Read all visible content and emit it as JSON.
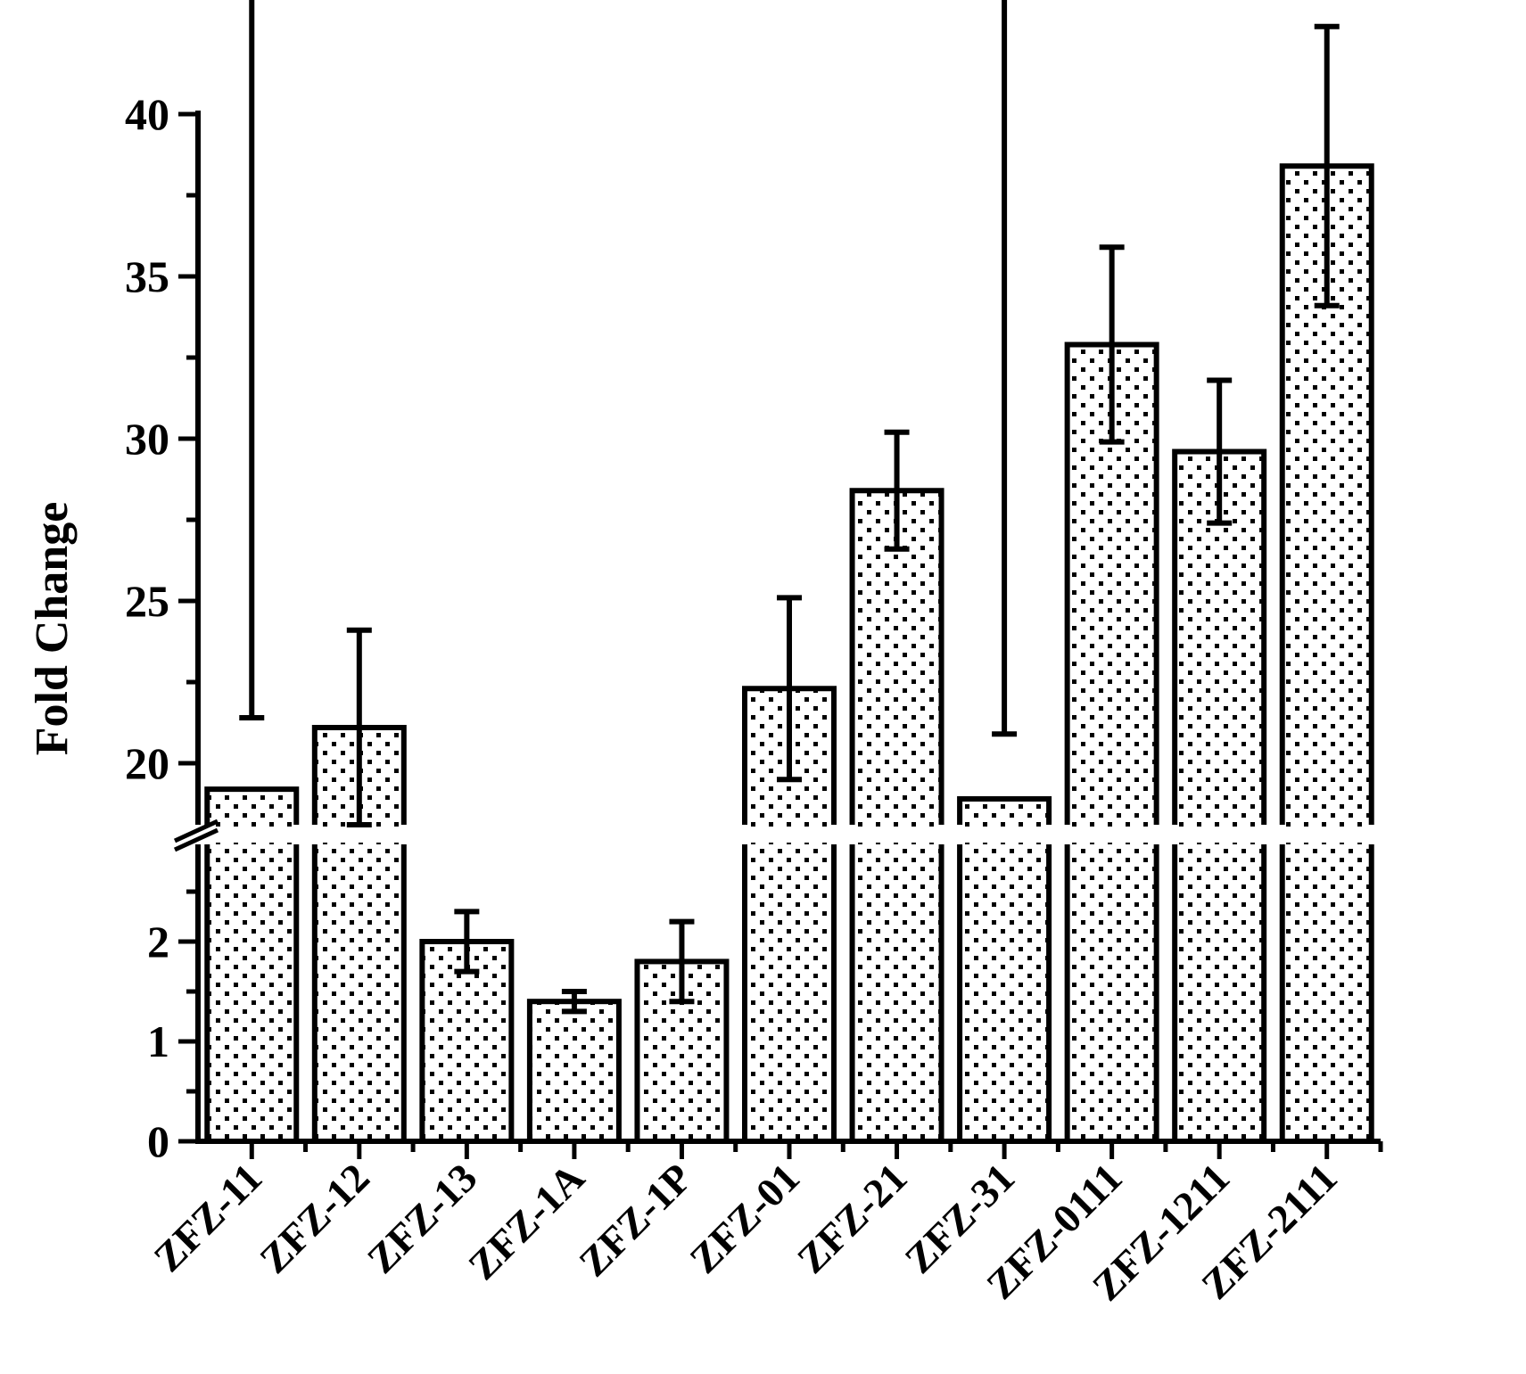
{
  "chart_data": {
    "type": "bar",
    "title": "",
    "xlabel": "",
    "ylabel": "Fold Change",
    "categories": [
      "ZFZ-11",
      "ZFZ-12",
      "ZFZ-13",
      "ZFZ-1A",
      "ZFZ-1P",
      "ZFZ-01",
      "ZFZ-21",
      "ZFZ-31",
      "ZFZ-0111",
      "ZFZ-1211",
      "ZFZ-2111"
    ],
    "values": [
      19.2,
      21.1,
      2.0,
      1.4,
      1.8,
      22.3,
      28.4,
      18.9,
      32.9,
      29.6,
      38.4
    ],
    "errors": [
      2.2,
      3.0,
      0.3,
      0.1,
      0.4,
      2.8,
      1.8,
      2.0,
      3.0,
      2.2,
      4.3
    ],
    "y_axis_break": {
      "lower_range": [
        0,
        3
      ],
      "upper_range": [
        18,
        41
      ],
      "lower_ticks": [
        "0",
        "1",
        "2"
      ],
      "upper_ticks": [
        "20",
        "25",
        "30",
        "35",
        "40"
      ]
    },
    "pattern": "dotted",
    "grid": false,
    "legend": "none",
    "colors": {
      "bar_fill": "#ffffff",
      "bar_dot": "#000000",
      "stroke": "#000000"
    }
  }
}
